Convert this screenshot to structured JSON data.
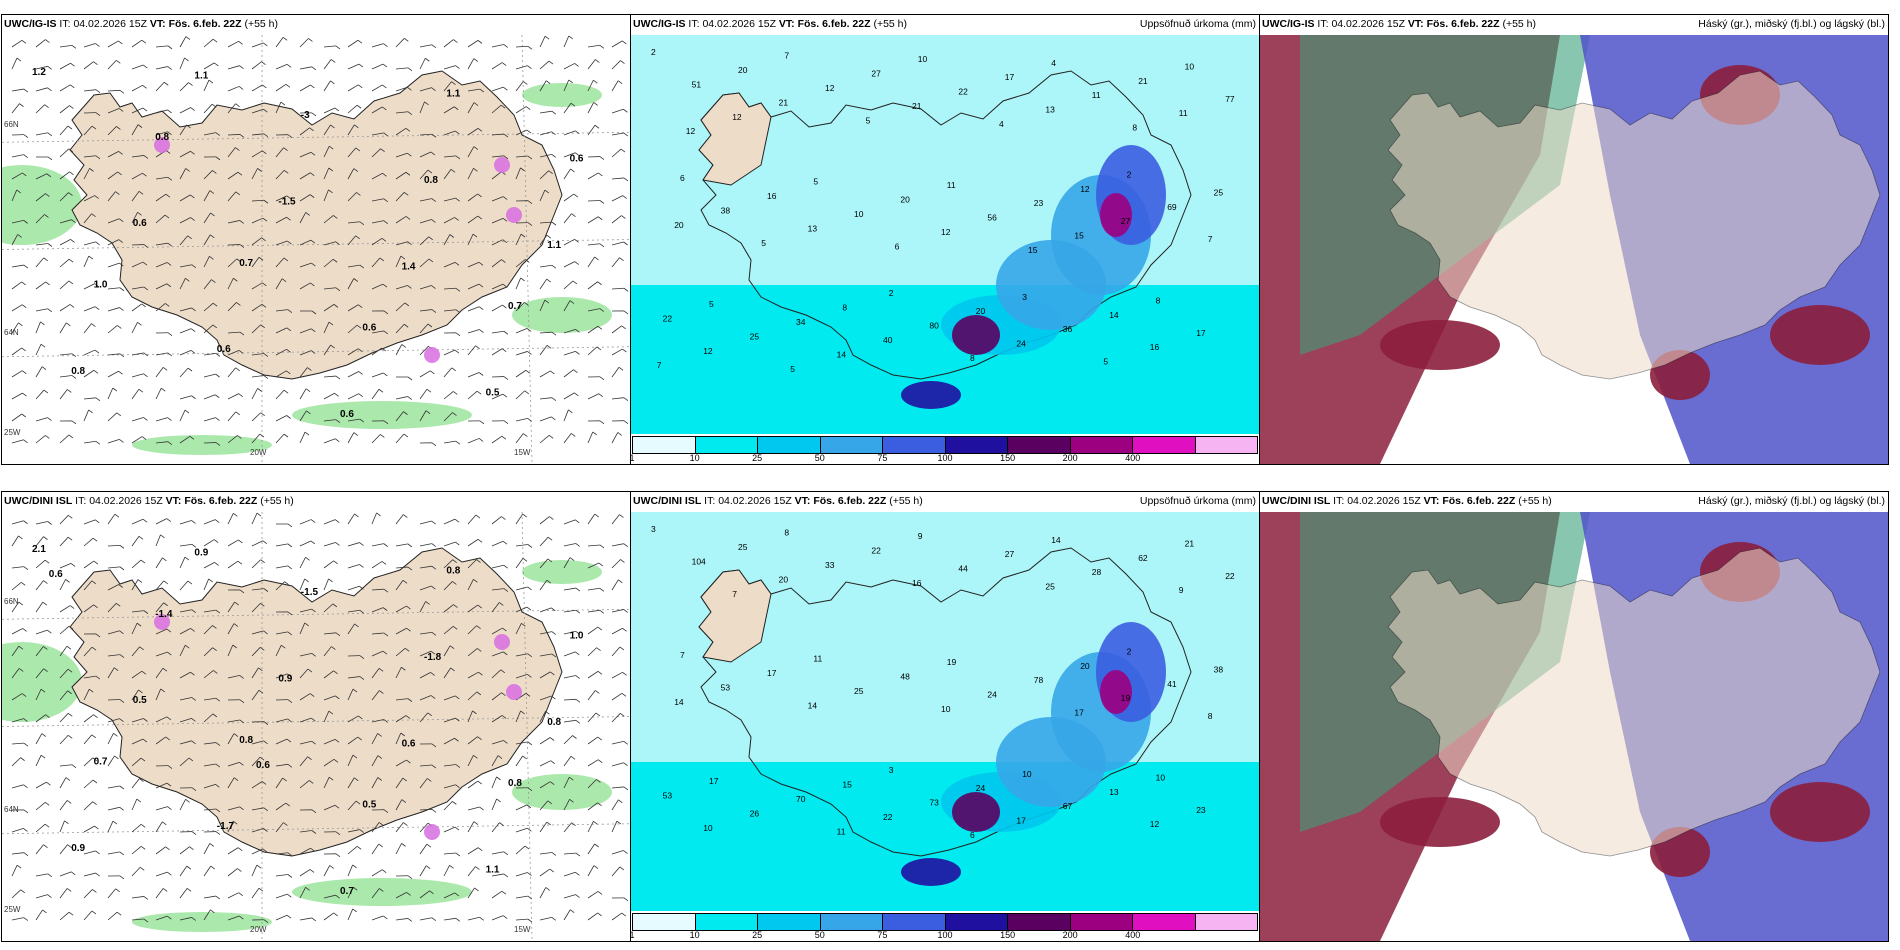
{
  "panels": [
    {
      "id": "p1",
      "model": "UWC/IG-IS",
      "it_label": "IT:",
      "it_value": "04.02.2026 15Z",
      "vt_label": "VT:",
      "vt_value": "Fös. 6.feb. 22Z",
      "lead": "(+55 h)",
      "right_title": "",
      "type": "wind",
      "coords": [
        "66N",
        "64N",
        "25W",
        "20W",
        "15W"
      ],
      "labels": [
        "1.2",
        "0.7",
        "1.1",
        "1.0",
        "-3",
        "0.7",
        "0.8",
        "0.6",
        "0.6",
        "0.6",
        "0.8",
        "0.8",
        "-1.5",
        "0.5",
        "0.6",
        "0.6",
        "1.1",
        "1.1",
        "1.4"
      ]
    },
    {
      "id": "p2",
      "model": "UWC/IG-IS",
      "it_label": "IT:",
      "it_value": "04.02.2026 15Z",
      "vt_label": "VT:",
      "vt_value": "Fös. 6.feb. 22Z",
      "lead": "(+55 h)",
      "right_title": "Uppsöfnuð úrkoma (mm)",
      "type": "precip",
      "labels": [
        "2",
        "2",
        "2",
        "7",
        "3",
        "6",
        "10",
        "8",
        "5",
        "4",
        "5",
        "11",
        "10",
        "8",
        "12",
        "20",
        "20",
        "25",
        "27",
        "14",
        "16",
        "17",
        "22",
        "20",
        "21",
        "34",
        "23",
        "51",
        "80",
        "69",
        "12",
        "36",
        "38",
        "22",
        "17",
        "10",
        "11",
        "25",
        "56",
        "77",
        "40",
        "27",
        "21",
        "24",
        "20",
        "21",
        "16",
        "13",
        "13",
        "12",
        "12",
        "11",
        "14",
        "15",
        "12",
        "8",
        "7",
        "5",
        "5",
        "5",
        "4",
        "7",
        "6",
        "8",
        "5",
        "15",
        "12"
      ],
      "legend_ticks": [
        "1",
        "10",
        "25",
        "50",
        "75",
        "100",
        "150",
        "200",
        "400"
      ]
    },
    {
      "id": "p3",
      "model": "UWC/IG-IS",
      "it_label": "IT:",
      "it_value": "04.02.2026 15Z",
      "vt_label": "VT:",
      "vt_value": "Fös. 6.feb. 22Z",
      "lead": "(+55 h)",
      "right_title": "Háský (gr.), miðský (fj.bl.) og lágský (bl.)",
      "type": "clouds"
    },
    {
      "id": "p4",
      "model": "UWC/DINI ISL",
      "it_label": "IT:",
      "it_value": "04.02.2026 15Z",
      "vt_label": "VT:",
      "vt_value": "Fös. 6.feb. 22Z",
      "lead": "(+55 h)",
      "right_title": "",
      "type": "wind",
      "coords": [
        "66N",
        "64N",
        "25W",
        "20W",
        "15W"
      ],
      "labels": [
        "2.1",
        "0.8",
        "0.8",
        "0.7",
        "-1.5",
        "0.8",
        "-1.4",
        "0.5",
        "1.0",
        "-1.7",
        "-1.8",
        "0.9",
        "0.9",
        "1.1",
        "0.5",
        "0.7",
        "0.8",
        "0.9",
        "0.6",
        "0.6",
        "0.6"
      ]
    },
    {
      "id": "p5",
      "model": "UWC/DINI ISL",
      "it_label": "IT:",
      "it_value": "04.02.2026 15Z",
      "vt_label": "VT:",
      "vt_value": "Fös. 6.feb. 22Z",
      "lead": "(+55 h)",
      "right_title": "Uppsöfnuð úrkoma (mm)",
      "type": "precip",
      "labels": [
        "3",
        "3",
        "2",
        "8",
        "10",
        "7",
        "9",
        "10",
        "11",
        "14",
        "17",
        "19",
        "21",
        "15",
        "20",
        "25",
        "24",
        "38",
        "22",
        "13",
        "17",
        "27",
        "53",
        "48",
        "62",
        "70",
        "78",
        "104",
        "73",
        "41",
        "33",
        "67",
        "53",
        "44",
        "23",
        "25",
        "28",
        "26",
        "24",
        "22",
        "22",
        "19",
        "20",
        "17",
        "14",
        "16",
        "12",
        "14",
        "25",
        "10",
        "10",
        "9",
        "11",
        "17",
        "7",
        "6",
        "8"
      ],
      "legend_ticks": [
        "1",
        "10",
        "25",
        "50",
        "75",
        "100",
        "150",
        "200",
        "400"
      ]
    },
    {
      "id": "p6",
      "model": "UWC/DINI ISL",
      "it_label": "IT:",
      "it_value": "04.02.2026 15Z",
      "vt_label": "VT:",
      "vt_value": "Fös. 6.feb. 22Z",
      "lead": "(+55 h)",
      "right_title": "Háský (gr.), miðský (fj.bl.) og lágský (bl.)",
      "type": "clouds"
    }
  ],
  "colors": {
    "land": "#eddcc8",
    "precip_legend": [
      "#e6fbff",
      "#00eaf0",
      "#00c8ee",
      "#36a6e8",
      "#3b5ee0",
      "#2010a0",
      "#5a0060",
      "#9c0080",
      "#e010c0",
      "#f6b4f2"
    ],
    "wind_green": "#8fe08f",
    "high_cloud": "#3aa07a",
    "mid_cloud": "#8c1e3c",
    "low_cloud": "#4f52c8"
  }
}
